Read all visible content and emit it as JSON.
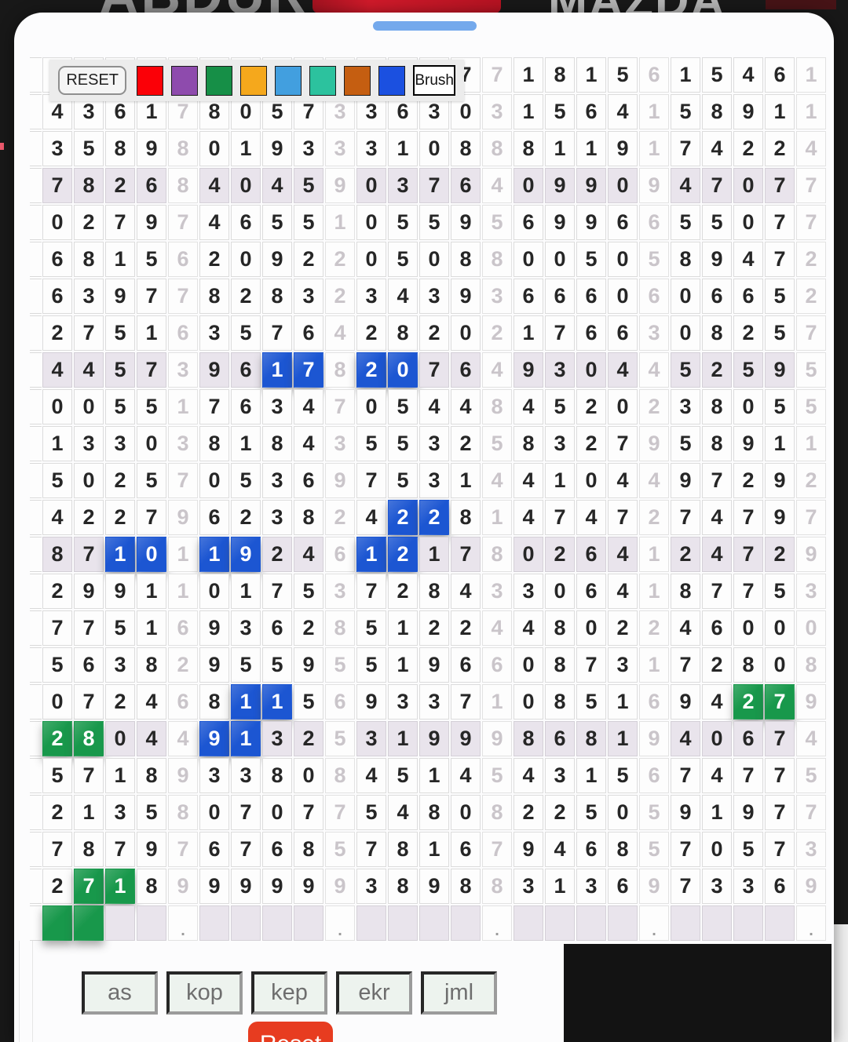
{
  "backdrop": {
    "left_text": "ABDUR",
    "right_text": "MAZDA"
  },
  "toolbar": {
    "reset_label": "RESET",
    "brush_label": "Brush",
    "swatches": [
      {
        "name": "red",
        "hex": "#fb0007"
      },
      {
        "name": "purple",
        "hex": "#8e4bad"
      },
      {
        "name": "green",
        "hex": "#168f47"
      },
      {
        "name": "orange",
        "hex": "#f5a81c"
      },
      {
        "name": "light-blue",
        "hex": "#429fdf"
      },
      {
        "name": "teal",
        "hex": "#2cc29e"
      },
      {
        "name": "dark-orange",
        "hex": "#c55e11"
      },
      {
        "name": "blue",
        "hex": "#1b50e0"
      }
    ]
  },
  "grid": {
    "gray_columns": [
      4,
      9,
      14,
      19,
      24
    ],
    "shaded_rows": [
      3,
      8,
      13,
      18,
      23
    ],
    "highlight_colors": {
      "blue": "#1c56d2",
      "green": "#18984b"
    },
    "rows": [
      [
        "",
        "",
        "",
        "",
        "",
        "",
        "",
        "",
        "",
        "",
        "",
        "",
        "",
        "7",
        "7",
        "1",
        "8",
        "1",
        "5",
        "6",
        "1",
        "5",
        "4",
        "6",
        "1"
      ],
      [
        "4",
        "3",
        "6",
        "1",
        "7",
        "8",
        "0",
        "5",
        "7",
        "3",
        "3",
        "6",
        "3",
        "0",
        "3",
        "1",
        "5",
        "6",
        "4",
        "1",
        "5",
        "8",
        "9",
        "1",
        "1"
      ],
      [
        "3",
        "5",
        "8",
        "9",
        "8",
        "0",
        "1",
        "9",
        "3",
        "3",
        "3",
        "1",
        "0",
        "8",
        "8",
        "8",
        "1",
        "1",
        "9",
        "1",
        "7",
        "4",
        "2",
        "2",
        "4"
      ],
      [
        "7",
        "8",
        "2",
        "6",
        "8",
        "4",
        "0",
        "4",
        "5",
        "9",
        "0",
        "3",
        "7",
        "6",
        "4",
        "0",
        "9",
        "9",
        "0",
        "9",
        "4",
        "7",
        "0",
        "7",
        "7"
      ],
      [
        "0",
        "2",
        "7",
        "9",
        "7",
        "4",
        "6",
        "5",
        "5",
        "1",
        "0",
        "5",
        "5",
        "9",
        "5",
        "6",
        "9",
        "9",
        "6",
        "6",
        "5",
        "5",
        "0",
        "7",
        "7"
      ],
      [
        "6",
        "8",
        "1",
        "5",
        "6",
        "2",
        "0",
        "9",
        "2",
        "2",
        "0",
        "5",
        "0",
        "8",
        "8",
        "0",
        "0",
        "5",
        "0",
        "5",
        "8",
        "9",
        "4",
        "7",
        "2"
      ],
      [
        "6",
        "3",
        "9",
        "7",
        "7",
        "8",
        "2",
        "8",
        "3",
        "2",
        "3",
        "4",
        "3",
        "9",
        "3",
        "6",
        "6",
        "6",
        "0",
        "6",
        "0",
        "6",
        "6",
        "5",
        "2"
      ],
      [
        "2",
        "7",
        "5",
        "1",
        "6",
        "3",
        "5",
        "7",
        "6",
        "4",
        "2",
        "8",
        "2",
        "0",
        "2",
        "1",
        "7",
        "6",
        "6",
        "3",
        "0",
        "8",
        "2",
        "5",
        "7"
      ],
      [
        "4",
        "4",
        "5",
        "7",
        "3",
        "9",
        "6",
        "1",
        "7",
        "8",
        "2",
        "0",
        "7",
        "6",
        "4",
        "9",
        "3",
        "0",
        "4",
        "4",
        "5",
        "2",
        "5",
        "9",
        "5"
      ],
      [
        "0",
        "0",
        "5",
        "5",
        "1",
        "7",
        "6",
        "3",
        "4",
        "7",
        "0",
        "5",
        "4",
        "4",
        "8",
        "4",
        "5",
        "2",
        "0",
        "2",
        "3",
        "8",
        "0",
        "5",
        "5"
      ],
      [
        "1",
        "3",
        "3",
        "0",
        "3",
        "8",
        "1",
        "8",
        "4",
        "3",
        "5",
        "5",
        "3",
        "2",
        "5",
        "8",
        "3",
        "2",
        "7",
        "9",
        "5",
        "8",
        "9",
        "1",
        "1"
      ],
      [
        "5",
        "0",
        "2",
        "5",
        "7",
        "0",
        "5",
        "3",
        "6",
        "9",
        "7",
        "5",
        "3",
        "1",
        "4",
        "4",
        "1",
        "0",
        "4",
        "4",
        "9",
        "7",
        "2",
        "9",
        "2"
      ],
      [
        "4",
        "2",
        "2",
        "7",
        "9",
        "6",
        "2",
        "3",
        "8",
        "2",
        "4",
        "2",
        "2",
        "8",
        "1",
        "4",
        "7",
        "4",
        "7",
        "2",
        "7",
        "4",
        "7",
        "9",
        "7"
      ],
      [
        "8",
        "7",
        "1",
        "0",
        "1",
        "1",
        "9",
        "2",
        "4",
        "6",
        "1",
        "2",
        "1",
        "7",
        "8",
        "0",
        "2",
        "6",
        "4",
        "1",
        "2",
        "4",
        "7",
        "2",
        "9"
      ],
      [
        "2",
        "9",
        "9",
        "1",
        "1",
        "0",
        "1",
        "7",
        "5",
        "3",
        "7",
        "2",
        "8",
        "4",
        "3",
        "3",
        "0",
        "6",
        "4",
        "1",
        "8",
        "7",
        "7",
        "5",
        "3"
      ],
      [
        "7",
        "7",
        "5",
        "1",
        "6",
        "9",
        "3",
        "6",
        "2",
        "8",
        "5",
        "1",
        "2",
        "2",
        "4",
        "4",
        "8",
        "0",
        "2",
        "2",
        "4",
        "6",
        "0",
        "0",
        "0"
      ],
      [
        "5",
        "6",
        "3",
        "8",
        "2",
        "9",
        "5",
        "5",
        "9",
        "5",
        "5",
        "1",
        "9",
        "6",
        "6",
        "0",
        "8",
        "7",
        "3",
        "1",
        "7",
        "2",
        "8",
        "0",
        "8"
      ],
      [
        "0",
        "7",
        "2",
        "4",
        "6",
        "8",
        "1",
        "1",
        "5",
        "6",
        "9",
        "3",
        "3",
        "7",
        "1",
        "0",
        "8",
        "5",
        "1",
        "6",
        "9",
        "4",
        "2",
        "7",
        "9"
      ],
      [
        "2",
        "8",
        "0",
        "4",
        "4",
        "9",
        "1",
        "3",
        "2",
        "5",
        "3",
        "1",
        "9",
        "9",
        "9",
        "8",
        "6",
        "8",
        "1",
        "9",
        "4",
        "0",
        "6",
        "7",
        "4"
      ],
      [
        "5",
        "7",
        "1",
        "8",
        "9",
        "3",
        "3",
        "8",
        "0",
        "8",
        "4",
        "5",
        "1",
        "4",
        "5",
        "4",
        "3",
        "1",
        "5",
        "6",
        "7",
        "4",
        "7",
        "7",
        "5"
      ],
      [
        "2",
        "1",
        "3",
        "5",
        "8",
        "0",
        "7",
        "0",
        "7",
        "7",
        "5",
        "4",
        "8",
        "0",
        "8",
        "2",
        "2",
        "5",
        "0",
        "5",
        "9",
        "1",
        "9",
        "7",
        "7"
      ],
      [
        "7",
        "8",
        "7",
        "9",
        "7",
        "6",
        "7",
        "6",
        "8",
        "5",
        "7",
        "8",
        "1",
        "6",
        "7",
        "9",
        "4",
        "6",
        "8",
        "5",
        "7",
        "0",
        "5",
        "7",
        "3"
      ],
      [
        "2",
        "7",
        "1",
        "8",
        "9",
        "9",
        "9",
        "9",
        "9",
        "9",
        "3",
        "8",
        "9",
        "8",
        "8",
        "3",
        "1",
        "3",
        "6",
        "9",
        "7",
        "3",
        "3",
        "6",
        "9"
      ],
      [
        "",
        "",
        "",
        "",
        ".",
        "",
        "",
        "",
        "",
        ".",
        "",
        "",
        "",
        "",
        ".",
        "",
        "",
        "",
        "",
        ".",
        "",
        "",
        "",
        "",
        "."
      ]
    ],
    "marks": {
      "8,7": "blue",
      "8,8": "blue",
      "8,10": "blue",
      "8,11": "blue",
      "12,11": "blue",
      "12,12": "blue",
      "13,2": "blue",
      "13,3": "blue",
      "13,5": "blue",
      "13,6": "blue",
      "13,10": "blue",
      "13,11": "blue",
      "17,6": "blue",
      "17,7": "blue",
      "17,22": "green",
      "17,23": "green",
      "18,0": "green",
      "18,1": "green",
      "18,5": "blue",
      "18,6": "blue",
      "22,1": "green",
      "22,2": "green",
      "23,0": "green",
      "23,1": "green"
    }
  },
  "footer": {
    "buttons": [
      "as",
      "kop",
      "kep",
      "ekr",
      "jml"
    ],
    "reset_label": "Reset"
  }
}
